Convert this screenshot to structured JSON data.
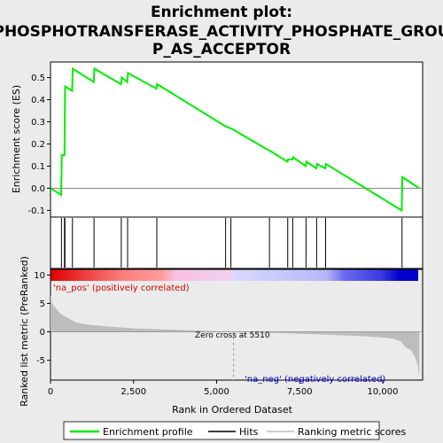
{
  "chart_data": {
    "type": "line",
    "title_lines": [
      "Enrichment plot:",
      "PHOSPHOTRANSFERASE_ACTIVITY_PHOSPHATE_GROU",
      "P_AS_ACCEPTOR"
    ],
    "xlabel": "Rank in Ordered Dataset",
    "ylabel_top": "Enrichment score (ES)",
    "ylabel_bottom": "Ranked list metric (PreRanked)",
    "xlim": [
      0,
      11200
    ],
    "x_ticks": [
      0,
      2500,
      5000,
      7500,
      10000
    ],
    "x_tick_labels": [
      "0",
      "2,500",
      "5,000",
      "7,500",
      "10,000"
    ],
    "es_ylim": [
      -0.13,
      0.57
    ],
    "es_ticks": [
      -0.1,
      0.0,
      0.1,
      0.2,
      0.3,
      0.4,
      0.5
    ],
    "es_tick_labels": [
      "-0.1",
      "0.0",
      "0.1",
      "0.2",
      "0.3",
      "0.4",
      "0.5"
    ],
    "metric_ylim": [
      -8.5,
      11
    ],
    "metric_ticks": [
      -5,
      0,
      5,
      10
    ],
    "metric_tick_labels": [
      "-5",
      "0",
      "5",
      "10"
    ],
    "series": [
      {
        "name": "Enrichment profile",
        "color": "#00ee00",
        "x": [
          0,
          320,
          340,
          420,
          430,
          440,
          650,
          670,
          1300,
          1320,
          2120,
          2140,
          2310,
          2330,
          3190,
          3210,
          5260,
          5280,
          5420,
          5440,
          6580,
          6600,
          7130,
          7150,
          7280,
          7300,
          7680,
          7700,
          8000,
          8020,
          8270,
          8290,
          10570,
          10590,
          11100
        ],
        "y": [
          0.0,
          -0.03,
          0.15,
          0.15,
          0.3,
          0.46,
          0.44,
          0.54,
          0.48,
          0.54,
          0.47,
          0.5,
          0.48,
          0.52,
          0.45,
          0.47,
          0.28,
          0.28,
          0.27,
          0.27,
          0.17,
          0.17,
          0.12,
          0.13,
          0.13,
          0.14,
          0.1,
          0.12,
          0.09,
          0.11,
          0.09,
          0.11,
          -0.1,
          0.05,
          0.0
        ]
      }
    ],
    "hits": [
      330,
      420,
      435,
      660,
      1310,
      2130,
      2320,
      3200,
      5270,
      5430,
      6590,
      7140,
      7290,
      7690,
      8010,
      8280,
      10580
    ],
    "ranked_metric": {
      "x": [
        0,
        50,
        150,
        300,
        500,
        800,
        1200,
        1800,
        2600,
        3500,
        4500,
        5510,
        6500,
        7500,
        8500,
        9300,
        9900,
        10300,
        10550,
        10700,
        10850,
        10950,
        11050,
        11100
      ],
      "y": [
        6.5,
        5.0,
        4.2,
        3.2,
        2.5,
        1.6,
        1.2,
        0.9,
        0.6,
        0.4,
        0.2,
        0.0,
        -0.15,
        -0.35,
        -0.55,
        -0.75,
        -0.95,
        -1.2,
        -1.7,
        -2.8,
        -3.2,
        -4.2,
        -5.8,
        -8.0
      ]
    },
    "zero_cross": 5510,
    "annotations": {
      "pos": "'na_pos' (positively correlated)",
      "neg": "'na_neg' (negatively correlated)",
      "zero": "Zero cross at 5510"
    },
    "legend": {
      "items": [
        "Enrichment profile",
        "Hits",
        "Ranking metric scores"
      ],
      "placement": "bottom"
    },
    "colors": {
      "es_line": "#00ee00",
      "hits": "#000000",
      "metric_fill": "#bdbdbd",
      "bar_stops": [
        "#e00000",
        "#ff8080",
        "#f8c0e0",
        "#d8d8ff",
        "#6060ee",
        "#0000cc"
      ]
    }
  }
}
